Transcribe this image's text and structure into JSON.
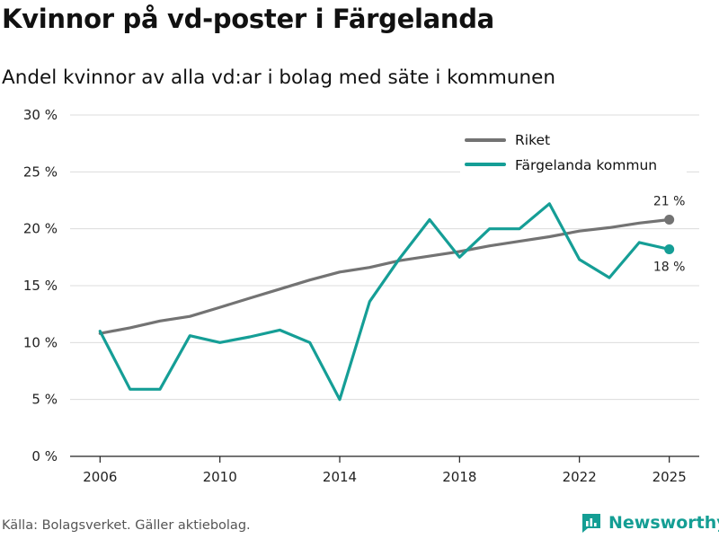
{
  "header": {
    "title": "Kvinnor på vd-poster i Färgelanda",
    "subtitle": "Andel kvinnor av alla vd:ar i bolag med säte i kommunen"
  },
  "footer": {
    "source": "Källa: Bolagsverket. Gäller aktiebolag.",
    "brand": "Newsworthy"
  },
  "colors": {
    "riket": "#737373",
    "fargelanda": "#159e96",
    "grid": "#dcdcdc",
    "brand": "#149e94"
  },
  "chart_data": {
    "type": "line",
    "title": "Kvinnor på vd-poster i Färgelanda",
    "xlabel": "",
    "ylabel": "",
    "xlim": [
      2005,
      2026
    ],
    "ylim": [
      0,
      30
    ],
    "x_ticks": [
      2006,
      2010,
      2014,
      2018,
      2022,
      2025
    ],
    "x_tick_labels": [
      "2006",
      "2010",
      "2014",
      "2018",
      "2022",
      "2025"
    ],
    "y_ticks": [
      0,
      5,
      10,
      15,
      20,
      25,
      30
    ],
    "y_tick_labels": [
      "0 %",
      "5 %",
      "10 %",
      "15 %",
      "20 %",
      "25 %",
      "30 %"
    ],
    "grid": true,
    "legend_position": "top-right",
    "x": [
      2006,
      2007,
      2008,
      2009,
      2010,
      2011,
      2012,
      2013,
      2014,
      2015,
      2016,
      2017,
      2018,
      2019,
      2020,
      2021,
      2022,
      2023,
      2024,
      2025
    ],
    "series": [
      {
        "name": "Riket",
        "color": "#737373",
        "values": [
          10.8,
          11.3,
          11.9,
          12.3,
          13.1,
          13.9,
          14.7,
          15.5,
          16.2,
          16.6,
          17.2,
          17.6,
          18.0,
          18.5,
          18.9,
          19.3,
          19.8,
          20.1,
          20.5,
          20.8
        ],
        "end_label": "21 %"
      },
      {
        "name": "Färgelanda kommun",
        "color": "#159e96",
        "values": [
          11.0,
          5.9,
          5.9,
          10.6,
          10.0,
          10.5,
          11.1,
          10.0,
          5.0,
          13.6,
          17.4,
          20.8,
          17.5,
          20.0,
          20.0,
          22.2,
          17.3,
          15.7,
          18.8,
          18.2
        ],
        "end_label": "18 %"
      }
    ]
  }
}
